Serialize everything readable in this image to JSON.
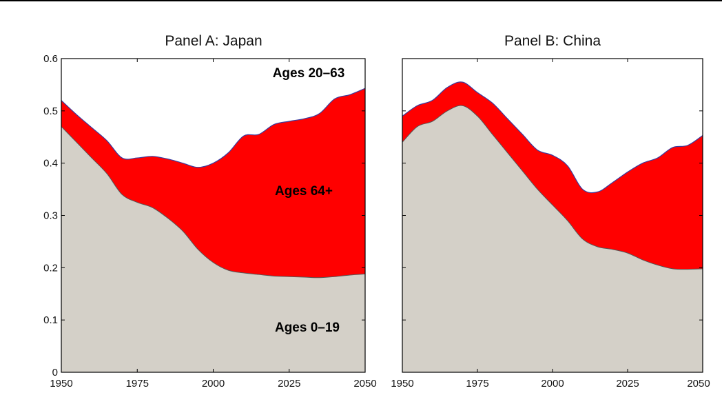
{
  "chart_data": [
    {
      "type": "area",
      "title": "Panel A: Japan",
      "xlabel": "",
      "ylabel": "",
      "xlim": [
        1950,
        2050
      ],
      "ylim": [
        0,
        0.6
      ],
      "x_ticks": [
        "1950",
        "1975",
        "2000",
        "2025",
        "2050"
      ],
      "y_ticks": [
        "0",
        "0.1",
        "0.2",
        "0.3",
        "0.4",
        "0.5",
        "0.6"
      ],
      "grid": false,
      "stacked": true,
      "x": [
        1950,
        1955,
        1960,
        1965,
        1970,
        1975,
        1980,
        1985,
        1990,
        1995,
        2000,
        2005,
        2010,
        2015,
        2020,
        2025,
        2030,
        2035,
        2040,
        2045,
        2050
      ],
      "series": [
        {
          "name": "Ages 0–19",
          "color": "#d4d0c8",
          "values": [
            0.47,
            0.44,
            0.41,
            0.38,
            0.34,
            0.325,
            0.315,
            0.295,
            0.27,
            0.235,
            0.21,
            0.195,
            0.19,
            0.187,
            0.184,
            0.183,
            0.182,
            0.181,
            0.183,
            0.186,
            0.188
          ]
        },
        {
          "name": "Ages 64+",
          "color": "#ff0000",
          "values": [
            0.05,
            0.053,
            0.058,
            0.063,
            0.07,
            0.085,
            0.098,
            0.113,
            0.13,
            0.157,
            0.19,
            0.225,
            0.262,
            0.268,
            0.29,
            0.297,
            0.303,
            0.314,
            0.34,
            0.345,
            0.355
          ]
        }
      ],
      "top_line_color": "#3b3b9e",
      "annotations": [
        "Ages 20–63",
        "Ages 64+",
        "Ages 0–19"
      ]
    },
    {
      "type": "area",
      "title": "Panel B: China",
      "xlabel": "",
      "ylabel": "",
      "xlim": [
        1950,
        2050
      ],
      "ylim": [
        0,
        0.6
      ],
      "x_ticks": [
        "1950",
        "1975",
        "2000",
        "2025",
        "2050"
      ],
      "grid": false,
      "stacked": true,
      "x": [
        1950,
        1955,
        1960,
        1965,
        1970,
        1975,
        1980,
        1985,
        1990,
        1995,
        2000,
        2005,
        2010,
        2015,
        2020,
        2025,
        2030,
        2035,
        2040,
        2045,
        2050
      ],
      "series": [
        {
          "name": "Ages 0–19",
          "color": "#d4d0c8",
          "values": [
            0.44,
            0.47,
            0.48,
            0.5,
            0.51,
            0.49,
            0.455,
            0.42,
            0.385,
            0.35,
            0.32,
            0.29,
            0.255,
            0.24,
            0.235,
            0.228,
            0.215,
            0.205,
            0.198,
            0.197,
            0.198
          ]
        },
        {
          "name": "Ages 64+",
          "color": "#ff0000",
          "values": [
            0.05,
            0.04,
            0.04,
            0.045,
            0.045,
            0.045,
            0.06,
            0.065,
            0.07,
            0.075,
            0.095,
            0.105,
            0.095,
            0.105,
            0.128,
            0.155,
            0.185,
            0.205,
            0.232,
            0.237,
            0.255
          ]
        }
      ],
      "top_line_color": "#3b3b9e"
    }
  ]
}
